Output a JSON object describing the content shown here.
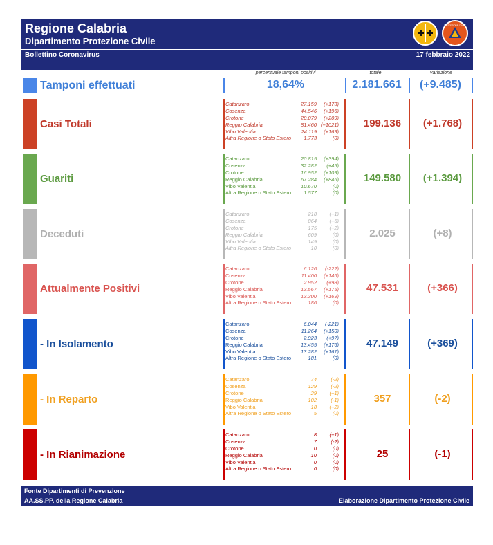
{
  "header": {
    "title": "Regione Calabria",
    "subtitle": "Dipartimento Protezione Civile",
    "bulletin": "Bollettino Coronavirus",
    "date": "17 febbraio 2022",
    "logo_civil_protection_text": "PROTEZIONE CIVILE"
  },
  "columns": {
    "perc_label": "percentuale tamponi positivi",
    "total_label": "totale",
    "variation_label": "variazione"
  },
  "tamponi": {
    "label": "Tamponi effettuati",
    "percent": "18,64%",
    "total": "2.181.661",
    "variation": "(+9.485)",
    "color": "#4a86e8"
  },
  "categories": [
    {
      "label": "Casi Totali",
      "color": "#cc4125",
      "text_color": "#c0392b",
      "italic": true,
      "total": "199.136",
      "variation": "(+1.768)",
      "provinces": [
        {
          "name": "Catanzaro",
          "value": "27.159",
          "delta": "(+173)"
        },
        {
          "name": "Cosenza",
          "value": "44.546",
          "delta": "(+196)"
        },
        {
          "name": "Crotone",
          "value": "20.079",
          "delta": "(+209)"
        },
        {
          "name": "Reggio Calabria",
          "value": "81.460",
          "delta": "(+1021)"
        },
        {
          "name": "Vibo Valentia",
          "value": "24.119",
          "delta": "(+169)"
        },
        {
          "name": "Altra Regione o Stato Estero",
          "value": "1.773",
          "delta": "(0)"
        }
      ]
    },
    {
      "label": "Guariti",
      "color": "#6aa84f",
      "text_color": "#5b9a3f",
      "italic": false,
      "total": "149.580",
      "variation": "(+1.394)",
      "provinces": [
        {
          "name": "Catanzaro",
          "value": "20.815",
          "delta": "(+394)"
        },
        {
          "name": "Cosenza",
          "value": "32.282",
          "delta": "(+45)"
        },
        {
          "name": "Crotone",
          "value": "16.952",
          "delta": "(+109)"
        },
        {
          "name": "Reggio Calabria",
          "value": "67.284",
          "delta": "(+846)"
        },
        {
          "name": "Vibo Valentia",
          "value": "10.670",
          "delta": "(0)"
        },
        {
          "name": "Altra Regione o Stato Estero",
          "value": "1.577",
          "delta": "(0)"
        }
      ]
    },
    {
      "label": "Deceduti",
      "color": "#b7b7b7",
      "text_color": "#b0b0b0",
      "italic": true,
      "total": "2.025",
      "variation": "(+8)",
      "provinces": [
        {
          "name": "Catanzaro",
          "value": "218",
          "delta": "(+1)"
        },
        {
          "name": "Cosenza",
          "value": "864",
          "delta": "(+5)"
        },
        {
          "name": "Crotone",
          "value": "175",
          "delta": "(+2)"
        },
        {
          "name": "Reggio Calabria",
          "value": "609",
          "delta": "(0)"
        },
        {
          "name": "Vibo Valentia",
          "value": "149",
          "delta": "(0)"
        },
        {
          "name": "Altra Regione o Stato Estero",
          "value": "10",
          "delta": "(0)"
        }
      ]
    },
    {
      "label": "Attualmente Positivi",
      "color": "#e06666",
      "text_color": "#d9534f",
      "italic": false,
      "total": "47.531",
      "variation": "(+366)",
      "provinces": [
        {
          "name": "Catanzaro",
          "value": "6.126",
          "delta": "(-222)"
        },
        {
          "name": "Cosenza",
          "value": "11.400",
          "delta": "(+146)"
        },
        {
          "name": "Crotone",
          "value": "2.952",
          "delta": "(+98)"
        },
        {
          "name": "Reggio Calabria",
          "value": "13.567",
          "delta": "(+175)"
        },
        {
          "name": "Vibo Valentia",
          "value": "13.300",
          "delta": "(+169)"
        },
        {
          "name": "Altra Regione o Stato Estero",
          "value": "186",
          "delta": "(0)"
        }
      ]
    },
    {
      "label": "- In Isolamento",
      "color": "#1155cc",
      "text_color": "#1a4f9c",
      "italic": false,
      "total": "47.149",
      "variation": "(+369)",
      "provinces": [
        {
          "name": "Catanzaro",
          "value": "6.044",
          "delta": "(-221)"
        },
        {
          "name": "Cosenza",
          "value": "11.264",
          "delta": "(+150)"
        },
        {
          "name": "Crotone",
          "value": "2.923",
          "delta": "(+97)"
        },
        {
          "name": "Reggio Calabria",
          "value": "13.455",
          "delta": "(+176)"
        },
        {
          "name": "Vibo Valentia",
          "value": "13.282",
          "delta": "(+167)"
        },
        {
          "name": "Altra Regione o Stato Estero",
          "value": "181",
          "delta": "(0)"
        }
      ]
    },
    {
      "label": "- In Reparto",
      "color": "#ff9900",
      "text_color": "#f0a020",
      "italic": false,
      "total": "357",
      "variation": "(-2)",
      "provinces": [
        {
          "name": "Catanzaro",
          "value": "74",
          "delta": "(-2)"
        },
        {
          "name": "Cosenza",
          "value": "129",
          "delta": "(-2)"
        },
        {
          "name": "Crotone",
          "value": "29",
          "delta": "(+1)"
        },
        {
          "name": "Reggio Calabria",
          "value": "102",
          "delta": "(-1)"
        },
        {
          "name": "Vibo Valentia",
          "value": "18",
          "delta": "(+2)"
        },
        {
          "name": "Altra Regione o Stato Estero",
          "value": "5",
          "delta": "(0)"
        }
      ]
    },
    {
      "label": "- In Rianimazione",
      "color": "#cc0000",
      "text_color": "#b30000",
      "italic": false,
      "total": "25",
      "variation": "(-1)",
      "provinces": [
        {
          "name": "Catanzaro",
          "value": "8",
          "delta": "(+1)"
        },
        {
          "name": "Cosenza",
          "value": "7",
          "delta": "(-2)"
        },
        {
          "name": "Crotone",
          "value": "0",
          "delta": "(0)"
        },
        {
          "name": "Reggio Calabria",
          "value": "10",
          "delta": "(0)"
        },
        {
          "name": "Vibo Valentia",
          "value": "0",
          "delta": "(0)"
        },
        {
          "name": "Altra Regione o Stato Estero",
          "value": "0",
          "delta": "(0)"
        }
      ]
    }
  ],
  "footer": {
    "source_line1": "Fonte Dipartimenti di Prevenzione",
    "source_line2": "AA.SS.PP.  della Regione Calabria",
    "elaboration": "Elaborazione Dipartimento Protezione Civile"
  }
}
